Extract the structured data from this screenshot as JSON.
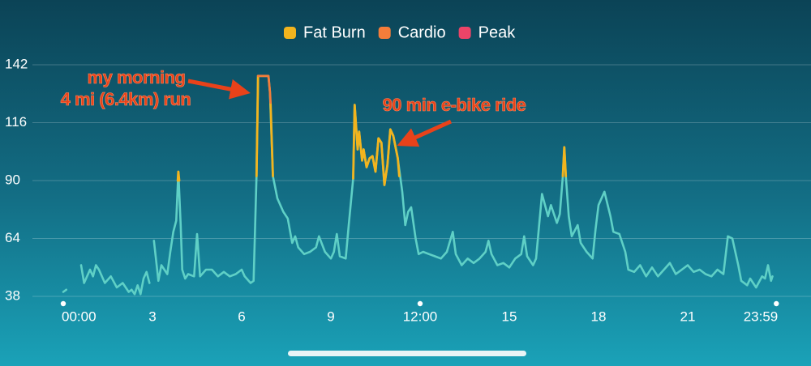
{
  "chart_data": {
    "type": "line",
    "line_color": "#5fd0c6",
    "x": [
      0.0,
      0.1,
      null,
      0.6,
      0.7,
      0.9,
      1.0,
      1.1,
      1.2,
      1.4,
      1.6,
      1.8,
      2.0,
      2.2,
      2.3,
      2.4,
      2.5,
      2.6,
      2.7,
      2.8,
      2.9,
      null,
      3.05,
      3.2,
      3.3,
      3.5,
      3.6,
      3.7,
      3.8,
      3.87,
      3.95,
      4.0,
      4.1,
      4.2,
      4.4,
      4.5,
      4.6,
      4.8,
      5.0,
      5.2,
      5.4,
      5.6,
      5.8,
      6.0,
      6.1,
      6.3,
      6.4,
      6.5,
      6.55,
      6.9,
      6.95,
      7.05,
      7.2,
      7.4,
      7.55,
      7.7,
      7.8,
      7.9,
      8.1,
      8.3,
      8.5,
      8.6,
      8.8,
      9.0,
      9.1,
      9.2,
      9.3,
      9.5,
      9.6,
      9.75,
      9.8,
      9.9,
      9.95,
      10.05,
      10.1,
      10.2,
      10.3,
      10.4,
      10.5,
      10.6,
      10.7,
      10.8,
      10.9,
      11.0,
      11.1,
      11.25,
      11.4,
      11.5,
      11.6,
      11.7,
      11.85,
      11.95,
      12.1,
      12.3,
      12.5,
      12.7,
      12.9,
      13.1,
      13.2,
      13.4,
      13.6,
      13.8,
      14.0,
      14.2,
      14.3,
      14.4,
      14.6,
      14.8,
      15.0,
      15.2,
      15.4,
      15.5,
      15.6,
      15.8,
      15.9,
      16.1,
      16.3,
      16.4,
      16.6,
      16.7,
      16.8,
      16.85,
      16.9,
      17.0,
      17.1,
      17.3,
      17.4,
      17.6,
      17.8,
      17.9,
      18.0,
      18.2,
      18.4,
      18.5,
      18.7,
      18.9,
      19.0,
      19.2,
      19.4,
      19.6,
      19.8,
      20.0,
      20.2,
      20.4,
      20.6,
      20.8,
      21.0,
      21.2,
      21.4,
      21.6,
      21.8,
      22.0,
      22.2,
      22.35,
      22.5,
      22.7,
      22.8,
      23.0,
      23.1,
      23.3,
      23.5,
      23.6,
      23.7,
      23.8,
      23.85
    ],
    "values": [
      40,
      41,
      null,
      52,
      44,
      50,
      47,
      52,
      50,
      44,
      47,
      42,
      44,
      40,
      41,
      39,
      43,
      39,
      46,
      49,
      44,
      null,
      63,
      45,
      52,
      48,
      58,
      67,
      72,
      94,
      70,
      50,
      46,
      48,
      47,
      66,
      47,
      50,
      50,
      47,
      49,
      47,
      48,
      50,
      47,
      44,
      45,
      92,
      137,
      137,
      130,
      92,
      82,
      76,
      73,
      62,
      65,
      60,
      57,
      58,
      60,
      65,
      58,
      55,
      58,
      66,
      56,
      55,
      70,
      91,
      124,
      104,
      112,
      99,
      104,
      96,
      100,
      101,
      94,
      109,
      107,
      88,
      97,
      113,
      110,
      100,
      85,
      70,
      76,
      78,
      64,
      57,
      58,
      57,
      56,
      55,
      58,
      67,
      57,
      52,
      55,
      53,
      55,
      58,
      63,
      57,
      52,
      53,
      51,
      55,
      57,
      65,
      56,
      52,
      55,
      84,
      74,
      79,
      71,
      75,
      92,
      105,
      92,
      74,
      65,
      70,
      62,
      58,
      55,
      68,
      79,
      85,
      74,
      67,
      66,
      58,
      50,
      49,
      52,
      47,
      51,
      47,
      50,
      53,
      48,
      50,
      52,
      49,
      50,
      48,
      47,
      50,
      48,
      65,
      64,
      52,
      45,
      43,
      46,
      42,
      47,
      46,
      52,
      45,
      47
    ],
    "series": [
      {
        "name": "Fat Burn",
        "color": "#f2b41e",
        "x": [
          3.85,
          3.87,
          3.9,
          null,
          6.5,
          6.55,
          null,
          6.97,
          7.05,
          null,
          9.75,
          9.8,
          9.9,
          9.95,
          10.05,
          10.1,
          10.2,
          10.3,
          10.4,
          10.5,
          10.6,
          10.7,
          10.8,
          10.9,
          11.0,
          11.1,
          11.25,
          11.3,
          null,
          16.8,
          16.85,
          16.9
        ],
        "values": [
          90,
          94,
          90,
          null,
          92,
          137,
          null,
          125,
          92,
          null,
          91,
          124,
          104,
          112,
          99,
          104,
          96,
          100,
          101,
          94,
          109,
          107,
          88,
          97,
          113,
          110,
          100,
          92,
          null,
          92,
          105,
          92
        ]
      },
      {
        "name": "Cardio",
        "color": "#f47d3a",
        "x": [
          6.55,
          6.9,
          6.95,
          6.97
        ],
        "values": [
          137,
          137,
          130,
          125
        ]
      },
      {
        "name": "Peak",
        "color": "#ec4468",
        "x": [],
        "values": []
      }
    ],
    "xlim": [
      0,
      24
    ],
    "ylim": [
      38,
      142
    ],
    "xticks": [
      {
        "value": 0,
        "label": "00:00"
      },
      3,
      6,
      9,
      {
        "value": 12,
        "label": "12:00"
      },
      15,
      18,
      21,
      {
        "value": 23.98,
        "label": "23:59"
      }
    ],
    "yticks": [
      38,
      64,
      90,
      116,
      142
    ],
    "grid": true,
    "annotations": [
      {
        "lines": [
          "my morning",
          "4 mi (6.4km) run"
        ]
      },
      {
        "lines": [
          "90 min e-bike ride"
        ]
      }
    ]
  }
}
